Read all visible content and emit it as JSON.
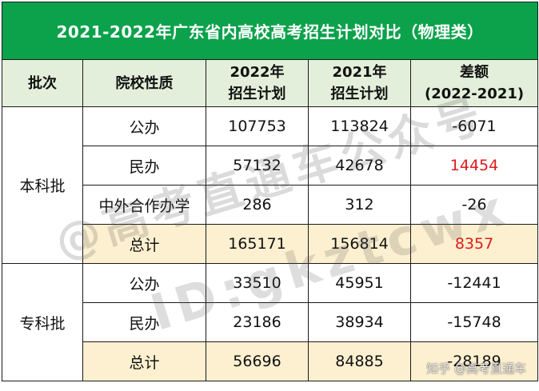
{
  "title": "2021-2022年广东省内高校高考招生计划对比（物理类）",
  "headers": {
    "batch": "批次",
    "type": "院校性质",
    "y2022_line1": "2022年",
    "y2022_line2": "招生计划",
    "y2021_line1": "2021年",
    "y2021_line2": "招生计划",
    "diff_line1": "差额",
    "diff_line2": "(2022-2021)"
  },
  "groups": [
    {
      "batch": "本科批",
      "rows": [
        {
          "type": "公办",
          "y2022": "107753",
          "y2021": "113824",
          "diff": "-6071"
        },
        {
          "type": "民办",
          "y2022": "57132",
          "y2021": "42678",
          "diff": "14454"
        },
        {
          "type": "中外合作办学",
          "y2022": "286",
          "y2021": "312",
          "diff": "-26"
        },
        {
          "type": "总计",
          "y2022": "165171",
          "y2021": "156814",
          "diff": "8357"
        }
      ]
    },
    {
      "batch": "专科批",
      "rows": [
        {
          "type": "公办",
          "y2022": "33510",
          "y2021": "45951",
          "diff": "-12441"
        },
        {
          "type": "民办",
          "y2022": "23186",
          "y2021": "38934",
          "diff": "-15748"
        },
        {
          "type": "总计",
          "y2022": "56696",
          "y2021": "84885",
          "diff": "-28189"
        }
      ]
    }
  ],
  "watermark": {
    "line1": "@高考直通车公众号",
    "line2": "ID:gkztcwx",
    "zhihu": "知乎 @高考直通车"
  },
  "colors": {
    "title_bg": "#0ba24b",
    "header_bg": "#e3efda",
    "total_bg": "#fdf0d0",
    "highlight_text": "#e01b1b"
  }
}
